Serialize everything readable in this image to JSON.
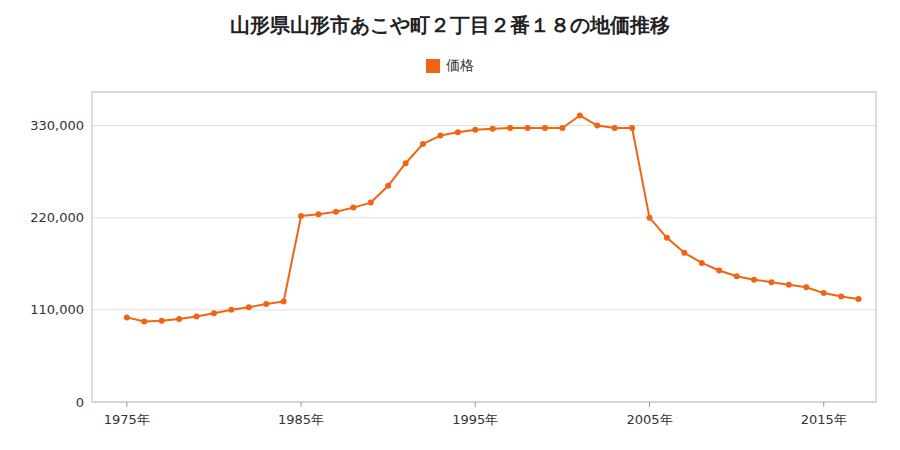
{
  "chart_data": {
    "type": "line",
    "title": "山形県山形市あこや町２丁目２番１８の地価推移",
    "x": [
      1975,
      1976,
      1977,
      1978,
      1979,
      1980,
      1981,
      1982,
      1983,
      1984,
      1985,
      1986,
      1987,
      1988,
      1989,
      1990,
      1991,
      1992,
      1993,
      1994,
      1995,
      1996,
      1997,
      1998,
      1999,
      2000,
      2001,
      2002,
      2003,
      2004,
      2005,
      2006,
      2007,
      2008,
      2009,
      2010,
      2011,
      2012,
      2013,
      2014,
      2015,
      2016,
      2017
    ],
    "series": [
      {
        "name": "価格",
        "color": "#f06414",
        "marker": "circle",
        "values": [
          101000,
          96000,
          97000,
          99000,
          102000,
          106000,
          110000,
          113000,
          117000,
          120000,
          222000,
          224000,
          227000,
          232000,
          238000,
          258000,
          285000,
          308000,
          318000,
          322000,
          325000,
          326000,
          327000,
          327000,
          327000,
          327000,
          342000,
          330000,
          327000,
          327000,
          220000,
          196000,
          178000,
          166000,
          157000,
          150000,
          146000,
          143000,
          140000,
          137000,
          130000,
          126000,
          123000
        ]
      }
    ],
    "xlim": [
      1973,
      2018
    ],
    "xticks": [
      {
        "value": 1975,
        "label": "1975年"
      },
      {
        "value": 1985,
        "label": "1985年"
      },
      {
        "value": 1995,
        "label": "1995年"
      },
      {
        "value": 2005,
        "label": "2005年"
      },
      {
        "value": 2015,
        "label": "2015年"
      }
    ],
    "ylim": [
      0,
      370000
    ],
    "yticks": [
      0,
      {
        "value": 110000,
        "label": "110,000"
      },
      {
        "value": 220000,
        "label": "220,000"
      },
      {
        "value": 330000,
        "label": "330,000"
      }
    ],
    "grid": true,
    "legend": "top"
  }
}
